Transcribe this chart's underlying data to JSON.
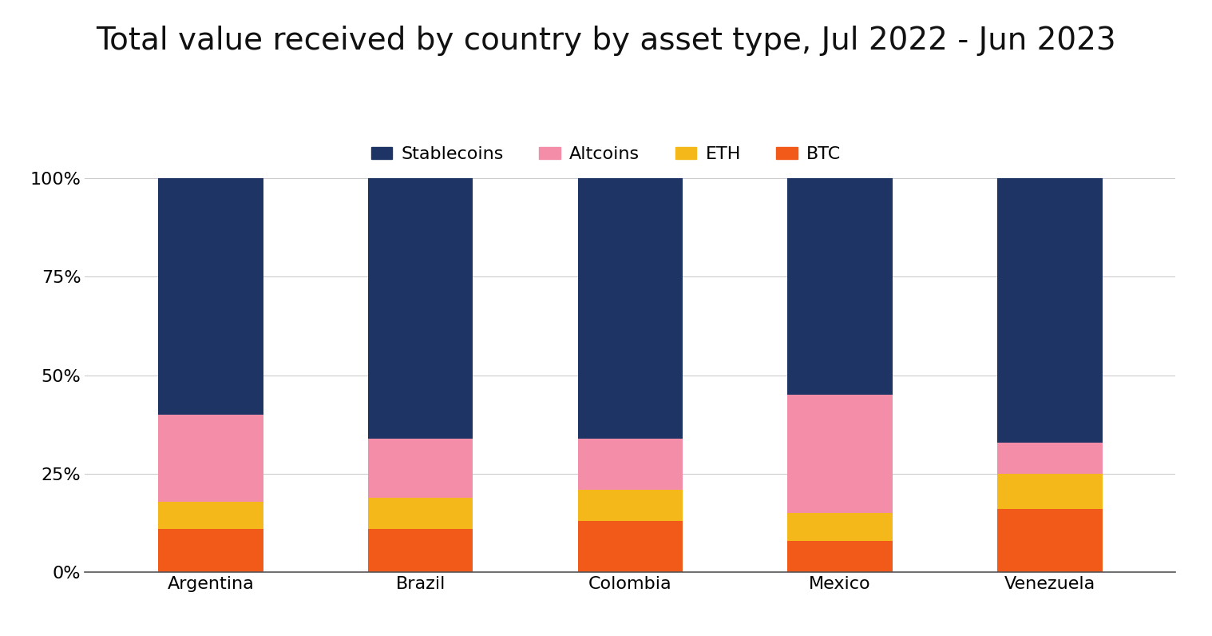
{
  "title": "Total value received by country by asset type, Jul 2022 - Jun 2023",
  "categories": [
    "Argentina",
    "Brazil",
    "Colombia",
    "Mexico",
    "Venezuela"
  ],
  "series": {
    "BTC": [
      11,
      11,
      13,
      8,
      16
    ],
    "ETH": [
      7,
      8,
      8,
      7,
      9
    ],
    "Altcoins": [
      22,
      15,
      13,
      30,
      8
    ],
    "Stablecoins": [
      60,
      66,
      66,
      55,
      67
    ]
  },
  "colors": {
    "BTC": "#f25a1a",
    "ETH": "#f5b81b",
    "Altcoins": "#f48ea8",
    "Stablecoins": "#1e3464"
  },
  "legend_order": [
    "Stablecoins",
    "Altcoins",
    "ETH",
    "BTC"
  ],
  "yticks": [
    0,
    25,
    50,
    75,
    100
  ],
  "ytick_labels": [
    "0%",
    "25%",
    "50%",
    "75%",
    "100%"
  ],
  "background_color": "#ffffff",
  "title_fontsize": 28,
  "tick_fontsize": 16,
  "legend_fontsize": 16,
  "bar_width": 0.5,
  "grid_color": "#cccccc",
  "grid_linewidth": 0.8
}
